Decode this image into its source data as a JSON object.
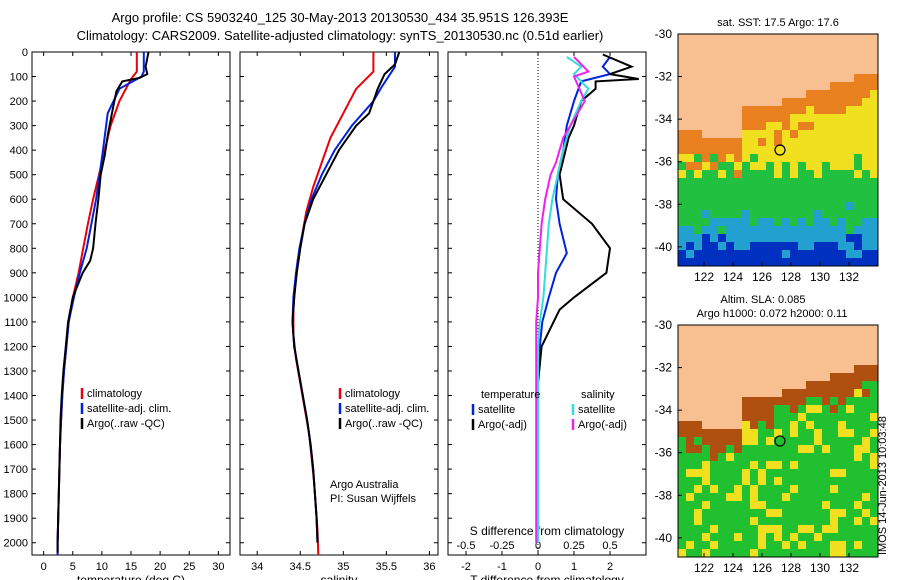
{
  "titles": {
    "line1": "Argo profile: CS 5903240_125 30-May-2013 20130530_434 35.951S 126.393E",
    "line2": "Climatology: CARS2009. Satellite-adjusted climatology: synTS_20130530.nc (0.51d earlier)"
  },
  "side_label": "IMOS 14-Jun-2013 10:03:48",
  "colors": {
    "climatology": "#e8000b",
    "satellite": "#0022dd",
    "argo": "#000000",
    "salinity_satellite": "#33dddd",
    "salinity_argo": "#ee22ee",
    "land": "#f8c090",
    "sst_high": "#e88020",
    "sst_warm": "#f0e020",
    "sst_mid": "#22c040",
    "sst_cool": "#22a0d0",
    "sst_cold": "#0030c0",
    "sla_high": "#b05010",
    "sla_low": "#20c030"
  },
  "chart_data": [
    {
      "type": "line",
      "xlabel": "temperature (deg C)",
      "xticks": [
        "0",
        "5",
        "10",
        "15",
        "20",
        "25",
        "30"
      ],
      "xlim": [
        -2,
        32
      ],
      "ylim": [
        2050,
        0
      ],
      "yticks": [
        "0",
        "100",
        "200",
        "300",
        "400",
        "500",
        "600",
        "700",
        "800",
        "900",
        "1000",
        "1100",
        "1200",
        "1300",
        "1400",
        "1500",
        "1600",
        "1700",
        "1800",
        "1900",
        "2000"
      ],
      "legend": [
        "climatology",
        "satellite-adj. clim.",
        "Argo(..raw -QC)"
      ],
      "series": [
        {
          "name": "climatology",
          "color_key": "climatology",
          "points": [
            [
              16,
              0
            ],
            [
              16,
              80
            ],
            [
              15,
              110
            ],
            [
              13,
              200
            ],
            [
              11.5,
              300
            ],
            [
              10.5,
              400
            ],
            [
              9.5,
              500
            ],
            [
              8.5,
              600
            ],
            [
              7.6,
              700
            ],
            [
              6.8,
              800
            ],
            [
              6.0,
              900
            ],
            [
              5.0,
              1000
            ],
            [
              4.3,
              1100
            ],
            [
              3.9,
              1200
            ],
            [
              3.5,
              1300
            ],
            [
              3.2,
              1400
            ],
            [
              3.0,
              1500
            ],
            [
              2.8,
              1600
            ],
            [
              2.7,
              1700
            ],
            [
              2.6,
              1800
            ],
            [
              2.5,
              1900
            ],
            [
              2.4,
              2000
            ],
            [
              2.4,
              2050
            ]
          ]
        },
        {
          "name": "satellite-adj. clim.",
          "color_key": "satellite",
          "points": [
            [
              17.2,
              0
            ],
            [
              17.2,
              80
            ],
            [
              16.8,
              100
            ],
            [
              13,
              150
            ],
            [
              11,
              250
            ],
            [
              10.2,
              400
            ],
            [
              9.6,
              500
            ],
            [
              9.0,
              600
            ],
            [
              8.2,
              700
            ],
            [
              7.4,
              800
            ],
            [
              6.2,
              900
            ],
            [
              5.2,
              1000
            ],
            [
              4.3,
              1100
            ],
            [
              3.9,
              1200
            ],
            [
              3.5,
              1300
            ],
            [
              3.2,
              1400
            ],
            [
              3.0,
              1500
            ],
            [
              2.8,
              1600
            ],
            [
              2.7,
              1700
            ],
            [
              2.6,
              1800
            ],
            [
              2.5,
              1900
            ],
            [
              2.4,
              2000
            ],
            [
              2.4,
              2050
            ]
          ]
        },
        {
          "name": "Argo(..raw -QC)",
          "color_key": "argo",
          "points": [
            [
              18,
              0
            ],
            [
              17.5,
              60
            ],
            [
              17.8,
              90
            ],
            [
              16.5,
              105
            ],
            [
              13.5,
              120
            ],
            [
              12.5,
              160
            ],
            [
              11.8,
              240
            ],
            [
              11,
              340
            ],
            [
              10.5,
              420
            ],
            [
              9.8,
              500
            ],
            [
              9.4,
              600
            ],
            [
              8.9,
              700
            ],
            [
              8.5,
              800
            ],
            [
              8.0,
              850
            ],
            [
              6.7,
              900
            ],
            [
              5.0,
              1000
            ],
            [
              4.2,
              1100
            ],
            [
              3.8,
              1200
            ],
            [
              3.4,
              1300
            ],
            [
              3.1,
              1400
            ],
            [
              2.9,
              1500
            ],
            [
              2.8,
              1600
            ],
            [
              2.7,
              1700
            ],
            [
              2.6,
              1800
            ],
            [
              2.5,
              1900
            ],
            [
              2.4,
              2000
            ],
            [
              2.4,
              2040
            ]
          ]
        }
      ]
    },
    {
      "type": "line",
      "xlabel": "salinity",
      "xticks": [
        "34",
        "34.5",
        "35",
        "35.5",
        "36"
      ],
      "xlim": [
        33.8,
        36.1
      ],
      "ylim": [
        2050,
        0
      ],
      "legend": [
        "climatology",
        "satellite-adj. clim.",
        "Argo(..raw -QC)"
      ],
      "annotation": [
        "Argo Australia",
        "PI: Susan Wijffels"
      ],
      "series": [
        {
          "name": "climatology",
          "color_key": "climatology",
          "points": [
            [
              35.35,
              0
            ],
            [
              35.35,
              80
            ],
            [
              35.15,
              150
            ],
            [
              35.0,
              250
            ],
            [
              34.85,
              350
            ],
            [
              34.75,
              450
            ],
            [
              34.65,
              550
            ],
            [
              34.57,
              650
            ],
            [
              34.52,
              750
            ],
            [
              34.47,
              850
            ],
            [
              34.44,
              950
            ],
            [
              34.42,
              1050
            ],
            [
              34.42,
              1150
            ],
            [
              34.45,
              1250
            ],
            [
              34.5,
              1350
            ],
            [
              34.55,
              1450
            ],
            [
              34.6,
              1550
            ],
            [
              34.63,
              1650
            ],
            [
              34.66,
              1750
            ],
            [
              34.68,
              1850
            ],
            [
              34.7,
              1950
            ],
            [
              34.71,
              2050
            ]
          ]
        },
        {
          "name": "satellite-adj. clim.",
          "color_key": "satellite",
          "points": [
            [
              35.6,
              0
            ],
            [
              35.6,
              60
            ],
            [
              35.45,
              140
            ],
            [
              35.35,
              200
            ],
            [
              35.1,
              300
            ],
            [
              34.9,
              400
            ],
            [
              34.75,
              500
            ],
            [
              34.63,
              600
            ],
            [
              34.55,
              700
            ],
            [
              34.49,
              800
            ],
            [
              34.45,
              900
            ],
            [
              34.42,
              1000
            ],
            [
              34.41,
              1100
            ],
            [
              34.43,
              1200
            ],
            [
              34.48,
              1300
            ],
            [
              34.53,
              1400
            ],
            [
              34.58,
              1500
            ],
            [
              34.62,
              1600
            ],
            [
              34.65,
              1700
            ],
            [
              34.67,
              1800
            ],
            [
              34.69,
              1900
            ],
            [
              34.7,
              2000
            ]
          ]
        },
        {
          "name": "Argo(..raw -QC)",
          "color_key": "argo",
          "points": [
            [
              35.65,
              0
            ],
            [
              35.6,
              50
            ],
            [
              35.48,
              90
            ],
            [
              35.4,
              150
            ],
            [
              35.3,
              250
            ],
            [
              35.15,
              300
            ],
            [
              34.95,
              400
            ],
            [
              34.8,
              500
            ],
            [
              34.65,
              600
            ],
            [
              34.55,
              700
            ],
            [
              34.5,
              800
            ],
            [
              34.46,
              900
            ],
            [
              34.43,
              1000
            ],
            [
              34.41,
              1100
            ],
            [
              34.43,
              1200
            ],
            [
              34.48,
              1300
            ],
            [
              34.53,
              1400
            ],
            [
              34.58,
              1500
            ],
            [
              34.62,
              1600
            ],
            [
              34.65,
              1700
            ],
            [
              34.67,
              1800
            ],
            [
              34.69,
              1900
            ],
            [
              34.7,
              2000
            ]
          ]
        }
      ]
    },
    {
      "type": "line",
      "xlabel": "T difference from climatology",
      "xticks": [
        "-2",
        "-1",
        "0",
        "1",
        "2"
      ],
      "xlim": [
        -2.5,
        3
      ],
      "ylim": [
        2050,
        0
      ],
      "top_xlabel": "S difference from climatology",
      "top_xticks": [
        "-0.5",
        "-0.25",
        "0",
        "0.25",
        "0.5"
      ],
      "legend_temperature_title": "temperature",
      "legend_salinity_title": "salinity",
      "legend_temperature": [
        "satellite",
        "Argo(-adj)"
      ],
      "legend_salinity": [
        "satellite",
        "Argo(-adj)"
      ],
      "series": [
        {
          "name": "satellite",
          "group": "temperature",
          "color_key": "satellite",
          "points": [
            [
              2.0,
              20
            ],
            [
              1.8,
              60
            ],
            [
              2.0,
              90
            ],
            [
              1.2,
              120
            ],
            [
              1.0,
              200
            ],
            [
              0.8,
              300
            ],
            [
              0.7,
              400
            ],
            [
              0.55,
              500
            ],
            [
              0.5,
              600
            ],
            [
              0.6,
              700
            ],
            [
              0.8,
              820
            ],
            [
              0.5,
              900
            ],
            [
              0.3,
              1000
            ],
            [
              0.12,
              1100
            ],
            [
              0.05,
              1200
            ],
            [
              0,
              1300
            ],
            [
              0,
              2000
            ]
          ]
        },
        {
          "name": "Argo(-adj)",
          "group": "temperature",
          "color_key": "argo",
          "points": [
            [
              1.8,
              10
            ],
            [
              2.6,
              60
            ],
            [
              2.0,
              90
            ],
            [
              2.8,
              110
            ],
            [
              1.6,
              120
            ],
            [
              1.6,
              150
            ],
            [
              1.2,
              200
            ],
            [
              1.0,
              300
            ],
            [
              0.85,
              350
            ],
            [
              0.6,
              500
            ],
            [
              0.7,
              600
            ],
            [
              1.5,
              700
            ],
            [
              2.0,
              800
            ],
            [
              1.9,
              900
            ],
            [
              1.0,
              1000
            ],
            [
              0.6,
              1050
            ],
            [
              0.1,
              1200
            ],
            [
              0,
              1350
            ],
            [
              0,
              2000
            ]
          ]
        },
        {
          "name": "satellite",
          "group": "salinity",
          "color_key": "salinity_satellite",
          "points": [
            [
              0.8,
              20
            ],
            [
              1.2,
              60
            ],
            [
              1.0,
              90
            ],
            [
              1.4,
              150
            ],
            [
              1.2,
              200
            ],
            [
              0.9,
              300
            ],
            [
              0.7,
              400
            ],
            [
              0.55,
              500
            ],
            [
              0.4,
              600
            ],
            [
              0.3,
              700
            ],
            [
              0.25,
              800
            ],
            [
              0.2,
              900
            ],
            [
              0.15,
              1000
            ],
            [
              0.05,
              1100
            ],
            [
              0,
              1200
            ],
            [
              0,
              2000
            ]
          ]
        },
        {
          "name": "Argo(-adj)",
          "group": "salinity",
          "color_key": "salinity_argo",
          "points": [
            [
              1.0,
              20
            ],
            [
              1.4,
              80
            ],
            [
              1.0,
              100
            ],
            [
              1.3,
              200
            ],
            [
              0.9,
              300
            ],
            [
              0.7,
              350
            ],
            [
              0.5,
              450
            ],
            [
              0.35,
              500
            ],
            [
              0.2,
              600
            ],
            [
              0.1,
              700
            ],
            [
              0.05,
              800
            ],
            [
              0,
              900
            ],
            [
              0,
              1000
            ],
            [
              -0.05,
              1100
            ],
            [
              -0.05,
              1900
            ],
            [
              -0.05,
              2000
            ]
          ]
        }
      ]
    }
  ],
  "maps": [
    {
      "title": "sat. SST: 17.5 Argo: 17.6",
      "yticks": [
        "-30",
        "-32",
        "-34",
        "-36",
        "-38",
        "-40"
      ],
      "xticks": [
        "122",
        "124",
        "126",
        "128",
        "130",
        "132"
      ]
    },
    {
      "title_line1": "Altim. SLA: 0.085",
      "title_line2": "Argo h1000: 0.072 h2000: 0.11",
      "yticks": [
        "-30",
        "-32",
        "-34",
        "-36",
        "-38",
        "-40"
      ],
      "xticks": [
        "122",
        "124",
        "126",
        "128",
        "130",
        "132"
      ]
    }
  ]
}
